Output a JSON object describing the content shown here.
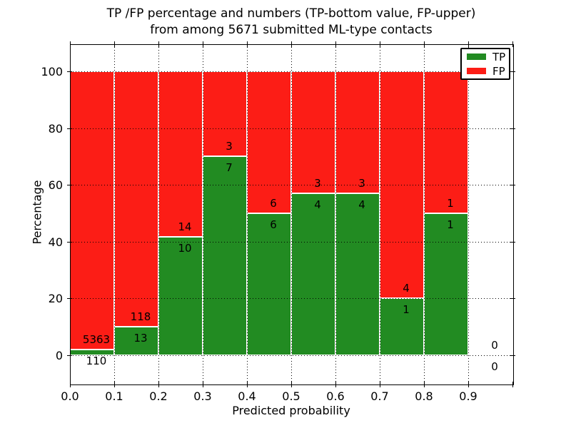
{
  "chart_data": {
    "type": "bar",
    "variant": "stacked-percentage-histogram",
    "title_lines": [
      "TP /FP percentage and numbers (TP-bottom value, FP-upper)",
      "from among 5671 submitted ML-type contacts"
    ],
    "total_contacts": 5671,
    "xlabel": "Predicted probability",
    "ylabel": "Percentage",
    "categories": [
      "0.0-0.1",
      "0.1-0.2",
      "0.2-0.3",
      "0.3-0.4",
      "0.4-0.5",
      "0.5-0.6",
      "0.6-0.7",
      "0.7-0.8",
      "0.8-0.9",
      "0.9-1.0"
    ],
    "series": [
      {
        "name": "TP",
        "color": "#228b22",
        "counts": [
          110,
          13,
          10,
          7,
          6,
          4,
          4,
          1,
          1,
          0
        ]
      },
      {
        "name": "FP",
        "color": "#fc1d16",
        "counts": [
          5363,
          118,
          14,
          3,
          6,
          3,
          3,
          4,
          1,
          0
        ]
      }
    ],
    "tp_percent": [
      2.0,
      9.9,
      41.7,
      70.0,
      50.0,
      57.1,
      57.1,
      20.0,
      50.0,
      null
    ],
    "value_label_convention": "TP count below boundary, FP count above boundary",
    "xticks": [
      "0.0",
      "0.1",
      "0.2",
      "0.3",
      "0.4",
      "0.5",
      "0.6",
      "0.7",
      "0.8",
      "0.9"
    ],
    "yticks": [
      "0",
      "20",
      "40",
      "60",
      "80",
      "100"
    ],
    "xlim": [
      0.0,
      1.0
    ],
    "ylim": [
      -10.1,
      109.6
    ],
    "grid": "dotted",
    "legend_position": "upper-right",
    "text_color": "#000000",
    "background_color": "#ffffff"
  }
}
